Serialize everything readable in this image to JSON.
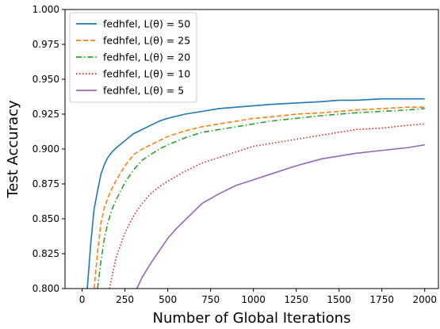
{
  "chart_data": {
    "type": "line",
    "title": "",
    "xlabel": "Number of Global Iterations",
    "ylabel": "Test Accuracy",
    "xlim": [
      -100,
      2080
    ],
    "ylim": [
      0.8,
      1.0
    ],
    "xticks": [
      0,
      250,
      500,
      750,
      1000,
      1250,
      1500,
      1750,
      2000
    ],
    "yticks": [
      0.8,
      0.825,
      0.85,
      0.875,
      0.9,
      0.925,
      0.95,
      0.975,
      1.0
    ],
    "xtick_labels": [
      "0",
      "250",
      "500",
      "750",
      "1000",
      "1250",
      "1500",
      "1750",
      "2000"
    ],
    "ytick_labels": [
      "0.800",
      "0.825",
      "0.850",
      "0.875",
      "0.900",
      "0.925",
      "0.950",
      "0.975",
      "1.000"
    ],
    "grid": false,
    "legend_position": "top-left",
    "series": [
      {
        "name": "fedhfel, L(θ) = 50",
        "color": "#1f77b4",
        "style": "solid",
        "x": [
          30,
          50,
          70,
          90,
          110,
          130,
          150,
          175,
          200,
          250,
          300,
          350,
          400,
          450,
          500,
          600,
          700,
          800,
          900,
          1000,
          1100,
          1250,
          1400,
          1500,
          1600,
          1750,
          1900,
          2000
        ],
        "y": [
          0.8,
          0.832,
          0.857,
          0.87,
          0.882,
          0.889,
          0.894,
          0.898,
          0.901,
          0.906,
          0.911,
          0.914,
          0.917,
          0.92,
          0.922,
          0.925,
          0.927,
          0.929,
          0.93,
          0.931,
          0.932,
          0.933,
          0.934,
          0.935,
          0.935,
          0.936,
          0.936,
          0.936
        ]
      },
      {
        "name": "fedhfel, L(θ) = 25",
        "color": "#ff7f0e",
        "style": "dashed",
        "x": [
          70,
          90,
          110,
          130,
          150,
          175,
          200,
          250,
          300,
          350,
          400,
          450,
          500,
          600,
          700,
          800,
          900,
          1000,
          1100,
          1250,
          1400,
          1500,
          1600,
          1750,
          1900,
          2000
        ],
        "y": [
          0.8,
          0.826,
          0.847,
          0.858,
          0.865,
          0.872,
          0.878,
          0.888,
          0.896,
          0.9,
          0.903,
          0.906,
          0.909,
          0.913,
          0.916,
          0.918,
          0.92,
          0.922,
          0.923,
          0.925,
          0.926,
          0.927,
          0.928,
          0.929,
          0.93,
          0.93
        ]
      },
      {
        "name": "fedhfel, L(θ) = 20",
        "color": "#2ca02c",
        "style": "dashdot",
        "x": [
          90,
          110,
          130,
          150,
          175,
          200,
          250,
          300,
          350,
          400,
          450,
          500,
          600,
          700,
          800,
          900,
          1000,
          1100,
          1250,
          1400,
          1500,
          1600,
          1750,
          1900,
          2000
        ],
        "y": [
          0.8,
          0.82,
          0.836,
          0.847,
          0.857,
          0.864,
          0.876,
          0.885,
          0.892,
          0.896,
          0.9,
          0.903,
          0.908,
          0.912,
          0.914,
          0.916,
          0.918,
          0.92,
          0.922,
          0.924,
          0.925,
          0.926,
          0.927,
          0.928,
          0.929
        ]
      },
      {
        "name": "fedhfel, L(θ) = 10",
        "color": "#d62728",
        "style": "dotted",
        "x": [
          160,
          180,
          200,
          250,
          300,
          350,
          400,
          450,
          500,
          600,
          700,
          800,
          900,
          1000,
          1100,
          1250,
          1400,
          1500,
          1600,
          1750,
          1900,
          2000
        ],
        "y": [
          0.8,
          0.812,
          0.823,
          0.84,
          0.852,
          0.861,
          0.868,
          0.873,
          0.877,
          0.884,
          0.89,
          0.894,
          0.898,
          0.902,
          0.904,
          0.907,
          0.91,
          0.912,
          0.914,
          0.915,
          0.917,
          0.918
        ]
      },
      {
        "name": "fedhfel, L(θ) = 5",
        "color": "#9467bd",
        "style": "solid",
        "x": [
          320,
          350,
          400,
          450,
          500,
          550,
          600,
          650,
          700,
          800,
          900,
          1000,
          1100,
          1250,
          1400,
          1500,
          1600,
          1750,
          1900,
          2000
        ],
        "y": [
          0.8,
          0.808,
          0.818,
          0.827,
          0.836,
          0.843,
          0.849,
          0.855,
          0.861,
          0.868,
          0.874,
          0.878,
          0.882,
          0.888,
          0.893,
          0.895,
          0.897,
          0.899,
          0.901,
          0.903
        ]
      }
    ]
  }
}
